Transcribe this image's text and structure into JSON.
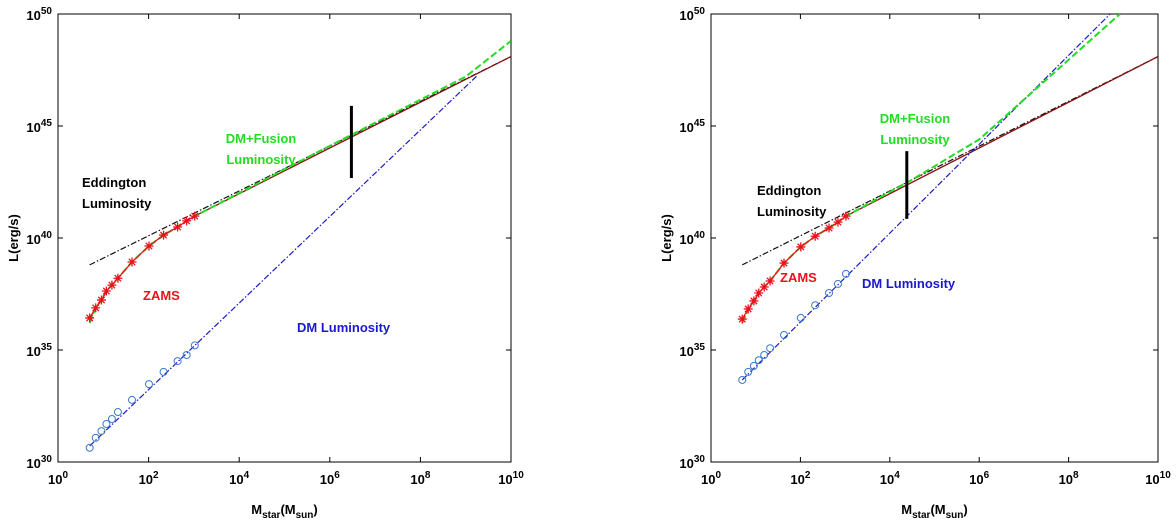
{
  "chart_data": [
    {
      "type": "line",
      "xscale": "log",
      "yscale": "log",
      "xlabel": "M_star(M_sun)",
      "ylabel": "L(erg/s)",
      "xlim": [
        1,
        10000000000
      ],
      "ylim": [
        1e+30,
        1e+50
      ],
      "xticks": [
        {
          "value": 1,
          "label": "10^0"
        },
        {
          "value": 100,
          "label": "10^2"
        },
        {
          "value": 10000,
          "label": "10^4"
        },
        {
          "value": 1000000,
          "label": "10^6"
        },
        {
          "value": 100000000,
          "label": "10^8"
        },
        {
          "value": 10000000000,
          "label": "10^10"
        }
      ],
      "yticks": [
        {
          "value": 1e+30,
          "label": "10^30"
        },
        {
          "value": 1e+35,
          "label": "10^35"
        },
        {
          "value": 1e+40,
          "label": "10^40"
        },
        {
          "value": 1e+45,
          "label": "10^45"
        },
        {
          "value": 1e+50,
          "label": "10^50"
        }
      ],
      "series": [
        {
          "color": "#111111",
          "style": "dashdot",
          "x": [
            5,
            10000000000
          ],
          "values": [
            6.3e+38,
            1.26e+48
          ]
        },
        {
          "color": "#8b1010",
          "style": "solid",
          "x": [
            1047,
            10000000000
          ],
          "values": [
            9.5e+40,
            1.26e+48
          ]
        },
        {
          "color": "#1a1acc",
          "style": "dashdot",
          "x": [
            5,
            1860000000
          ],
          "values": [
            5.2e+30,
            1.9e+47
          ]
        },
        {
          "color": "#3a7ac8",
          "style": "none",
          "marker": "circle",
          "x": [
            5,
            6.8,
            9.1,
            11.7,
            15.5,
            21,
            43,
            102,
            214,
            437,
            692,
            1047
          ],
          "values": [
            4.3e+30,
            1.2e+31,
            2.4e+31,
            5e+31,
            8.3e+31,
            1.7e+32,
            5.9e+32,
            3e+33,
            1.05e+34,
            3.2e+34,
            6e+34,
            1.6e+35
          ]
        },
        {
          "color": "#22dd22",
          "style": "dashed",
          "x": [
            5,
            6.8,
            9.1,
            11.7,
            15.5,
            21,
            43,
            102,
            214,
            437,
            692,
            1047,
            1000000,
            1000000000,
            10000000000
          ],
          "values": [
            1.6e+36,
            7.6e+36,
            1.7e+37,
            4.3e+37,
            7.9e+37,
            1.6e+38,
            8.5e+38,
            4.4e+39,
            1.35e+40,
            3.1e+40,
            5.8e+40,
            9.5e+40,
            1.3e+44,
            1.6e+47,
            6.3e+48
          ]
        },
        {
          "color": "#e8141c",
          "style": "solid",
          "marker": "star",
          "x": [
            5,
            6.8,
            9.1,
            11.7,
            15.5,
            21,
            43,
            102,
            214,
            437,
            692,
            1047
          ],
          "values": [
            2.7e+36,
            7.6e+36,
            1.7e+37,
            4.3e+37,
            7.9e+37,
            1.6e+38,
            8.5e+38,
            4.4e+39,
            1.35e+40,
            3.1e+40,
            5.8e+40,
            9.5e+40
          ]
        },
        {
          "color": "#000000",
          "style": "bar",
          "x": [
            3000000,
            3000000
          ],
          "values": [
            7.9e+45,
            4.8e+42
          ]
        }
      ],
      "annotations": [
        {
          "text": [
            "Eddington",
            "Luminosity"
          ],
          "color": "#000000"
        },
        {
          "text": [
            "DM+Fusion",
            "Luminosity"
          ],
          "color": "#22dd22"
        },
        {
          "text": [
            "ZAMS"
          ],
          "color": "#e8141c"
        },
        {
          "text": [
            "DM Luminosity"
          ],
          "color": "#1a1acc"
        }
      ]
    },
    {
      "type": "line",
      "xscale": "log",
      "yscale": "log",
      "xlabel": "M_star(M_sun)",
      "ylabel": "L(erg/s)",
      "xlim": [
        1,
        10000000000
      ],
      "ylim": [
        1e+30,
        1e+50
      ],
      "xticks": [
        {
          "value": 1,
          "label": "10^0"
        },
        {
          "value": 100,
          "label": "10^2"
        },
        {
          "value": 10000,
          "label": "10^4"
        },
        {
          "value": 1000000,
          "label": "10^6"
        },
        {
          "value": 100000000,
          "label": "10^8"
        },
        {
          "value": 10000000000,
          "label": "10^10"
        }
      ],
      "yticks": [
        {
          "value": 1e+30,
          "label": "10^30"
        },
        {
          "value": 1e+35,
          "label": "10^35"
        },
        {
          "value": 1e+40,
          "label": "10^40"
        },
        {
          "value": 1e+45,
          "label": "10^45"
        },
        {
          "value": 1e+50,
          "label": "10^50"
        }
      ],
      "series": [
        {
          "color": "#111111",
          "style": "dashdot",
          "x": [
            5,
            10000000000
          ],
          "values": [
            6.3e+38,
            1.26e+48
          ]
        },
        {
          "color": "#8b1010",
          "style": "solid",
          "x": [
            1047,
            10000000000
          ],
          "values": [
            9.5e+40,
            1.26e+48
          ]
        },
        {
          "color": "#1a1acc",
          "style": "dashdot",
          "x": [
            5,
            850000000
          ],
          "values": [
            4.6e+33,
            1e+50
          ]
        },
        {
          "color": "#3a7ac8",
          "style": "none",
          "marker": "circle",
          "x": [
            5,
            6.8,
            9.1,
            11.7,
            15.5,
            21,
            43,
            102,
            214,
            437,
            692,
            1047
          ],
          "values": [
            4.6e+33,
            1.05e+34,
            1.95e+34,
            3.5e+34,
            6e+34,
            1.2e+35,
            4.7e+35,
            2.7e+36,
            1e+37,
            3.5e+37,
            8.9e+37,
            2.5e+38
          ]
        },
        {
          "color": "#22dd22",
          "style": "dashed",
          "x": [
            5,
            6.8,
            9.1,
            11.7,
            15.5,
            21,
            43,
            102,
            214,
            437,
            692,
            1047,
            30000,
            1000000,
            10000000,
            1400000000
          ],
          "values": [
            1.6e+36,
            6.8e+36,
            1.55e+37,
            3.5e+37,
            6.5e+37,
            1.2e+38,
            7.6e+38,
            4e+39,
            1.2e+40,
            2.8e+40,
            5.1e+40,
            9.5e+40,
            3.8e+42,
            2.5e+44,
            1.5e+46,
            1e+50
          ]
        },
        {
          "color": "#e8141c",
          "style": "solid",
          "marker": "star",
          "x": [
            5,
            6.8,
            9.1,
            11.7,
            15.5,
            21,
            43,
            102,
            214,
            437,
            692,
            1047
          ],
          "values": [
            2.4e+36,
            6.8e+36,
            1.55e+37,
            3.5e+37,
            6.5e+37,
            1.2e+38,
            7.6e+38,
            4e+39,
            1.2e+40,
            2.8e+40,
            5.1e+40,
            9.5e+40
          ]
        },
        {
          "color": "#000000",
          "style": "bar",
          "x": [
            24000,
            24000
          ],
          "values": [
            7.6e+43,
            7.1e+40
          ]
        }
      ],
      "annotations": [
        {
          "text": [
            "Eddington",
            "Luminosity"
          ],
          "color": "#000000"
        },
        {
          "text": [
            "DM+Fusion",
            "Luminosity"
          ],
          "color": "#22dd22"
        },
        {
          "text": [
            "ZAMS"
          ],
          "color": "#e8141c"
        },
        {
          "text": [
            "DM Luminosity"
          ],
          "color": "#1a1acc"
        }
      ]
    }
  ]
}
